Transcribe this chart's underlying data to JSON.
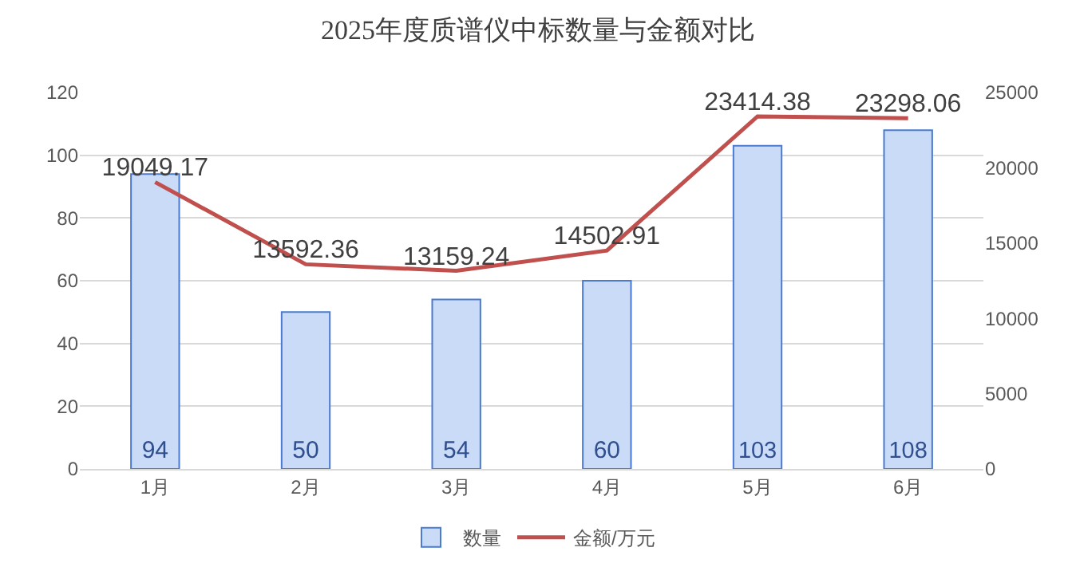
{
  "chart_data": {
    "type": "bar",
    "title": "2025年度质谱仪中标数量与金额对比",
    "categories": [
      "1月",
      "2月",
      "3月",
      "4月",
      "5月",
      "6月"
    ],
    "series": [
      {
        "name": "数量",
        "color": "#c9dbf6",
        "values": [
          94,
          50,
          54,
          60,
          103,
          108
        ]
      },
      {
        "name": "金额/万元",
        "type": "line",
        "axis": "y2",
        "color": "#c0504d",
        "values": [
          19049.17,
          13592.36,
          13159.24,
          14502.91,
          23414.38,
          23298.06
        ]
      }
    ],
    "ylim": [
      0,
      120
    ],
    "yticks": [
      0,
      20,
      40,
      60,
      80,
      100,
      120
    ],
    "y2lim": [
      0,
      25000
    ],
    "y2ticks": [
      0,
      5000,
      10000,
      15000,
      20000,
      25000
    ],
    "grid": "y",
    "legend": "bottom",
    "data_labels": true,
    "marker": "none"
  }
}
